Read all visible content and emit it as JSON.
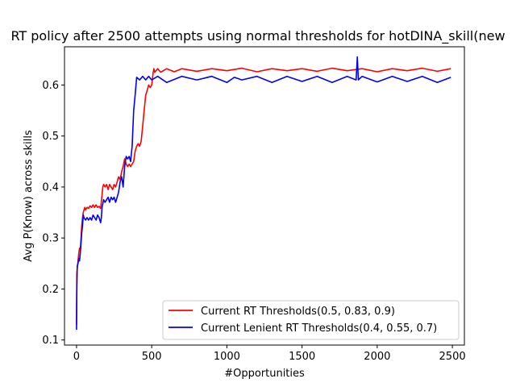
{
  "chart_data": {
    "type": "line",
    "title": "RT policy after 2500 attempts using normal thresholds for hotDINA_skill(new",
    "xlabel": "#Opportunities",
    "ylabel": "Avg P(Know) across skills",
    "xlim": [
      -80,
      2580
    ],
    "ylim": [
      0.09,
      0.675
    ],
    "xticks": [
      0,
      500,
      1000,
      1500,
      2000,
      2500
    ],
    "yticks": [
      0.1,
      0.2,
      0.3,
      0.4,
      0.5,
      0.6
    ],
    "ytick_labels": [
      "0.1",
      "0.2",
      "0.3",
      "0.4",
      "0.5",
      "0.6"
    ],
    "grid": false,
    "legend_position": "lower-right",
    "series": [
      {
        "name": "Current RT Thresholds(0.5, 0.83, 0.9)",
        "color": "#ff0000",
        "x": [
          0,
          2,
          5,
          10,
          15,
          20,
          25,
          30,
          35,
          40,
          45,
          50,
          55,
          60,
          70,
          80,
          90,
          100,
          110,
          120,
          130,
          140,
          150,
          160,
          170,
          175,
          180,
          190,
          200,
          210,
          220,
          230,
          240,
          250,
          260,
          270,
          280,
          290,
          300,
          310,
          320,
          330,
          340,
          350,
          360,
          370,
          380,
          390,
          400,
          410,
          420,
          430,
          440,
          450,
          460,
          470,
          480,
          490,
          500,
          510,
          515,
          520,
          540,
          560,
          600,
          650,
          700,
          800,
          900,
          1000,
          1100,
          1200,
          1300,
          1400,
          1500,
          1600,
          1700,
          1800,
          1900,
          2000,
          2100,
          2200,
          2300,
          2400,
          2490
        ],
        "y": [
          0.13,
          0.23,
          0.24,
          0.255,
          0.27,
          0.28,
          0.275,
          0.3,
          0.325,
          0.34,
          0.35,
          0.355,
          0.36,
          0.355,
          0.36,
          0.358,
          0.363,
          0.36,
          0.365,
          0.36,
          0.365,
          0.36,
          0.362,
          0.358,
          0.385,
          0.4,
          0.405,
          0.4,
          0.405,
          0.395,
          0.405,
          0.4,
          0.395,
          0.405,
          0.4,
          0.41,
          0.42,
          0.415,
          0.43,
          0.44,
          0.455,
          0.445,
          0.44,
          0.445,
          0.44,
          0.445,
          0.45,
          0.47,
          0.48,
          0.485,
          0.48,
          0.49,
          0.52,
          0.55,
          0.58,
          0.59,
          0.6,
          0.595,
          0.6,
          0.625,
          0.632,
          0.625,
          0.632,
          0.625,
          0.632,
          0.626,
          0.632,
          0.627,
          0.632,
          0.628,
          0.633,
          0.626,
          0.632,
          0.628,
          0.632,
          0.627,
          0.633,
          0.628,
          0.632,
          0.626,
          0.632,
          0.628,
          0.633,
          0.627,
          0.632
        ]
      },
      {
        "name": "Current Lenient RT Thresholds(0.4, 0.55, 0.7)",
        "color": "#0000ff",
        "x": [
          0,
          2,
          5,
          10,
          15,
          20,
          25,
          30,
          35,
          40,
          45,
          50,
          60,
          70,
          80,
          90,
          100,
          110,
          120,
          130,
          140,
          150,
          160,
          165,
          170,
          180,
          190,
          200,
          210,
          220,
          230,
          240,
          250,
          260,
          270,
          280,
          290,
          300,
          310,
          320,
          330,
          340,
          350,
          360,
          370,
          380,
          390,
          400,
          420,
          440,
          460,
          480,
          500,
          540,
          600,
          700,
          800,
          900,
          1000,
          1050,
          1100,
          1200,
          1300,
          1400,
          1500,
          1600,
          1700,
          1800,
          1860,
          1868,
          1875,
          1900,
          2000,
          2100,
          2200,
          2300,
          2400,
          2490
        ],
        "y": [
          0.12,
          0.2,
          0.245,
          0.25,
          0.26,
          0.255,
          0.27,
          0.29,
          0.31,
          0.325,
          0.345,
          0.34,
          0.335,
          0.34,
          0.335,
          0.34,
          0.335,
          0.345,
          0.34,
          0.335,
          0.345,
          0.34,
          0.33,
          0.34,
          0.36,
          0.375,
          0.37,
          0.375,
          0.38,
          0.37,
          0.38,
          0.375,
          0.38,
          0.37,
          0.38,
          0.39,
          0.41,
          0.42,
          0.4,
          0.44,
          0.46,
          0.455,
          0.46,
          0.45,
          0.48,
          0.55,
          0.58,
          0.615,
          0.61,
          0.617,
          0.61,
          0.617,
          0.61,
          0.617,
          0.605,
          0.617,
          0.61,
          0.617,
          0.605,
          0.615,
          0.61,
          0.617,
          0.605,
          0.617,
          0.607,
          0.617,
          0.605,
          0.617,
          0.61,
          0.655,
          0.61,
          0.617,
          0.606,
          0.617,
          0.607,
          0.617,
          0.605,
          0.615
        ]
      }
    ]
  }
}
